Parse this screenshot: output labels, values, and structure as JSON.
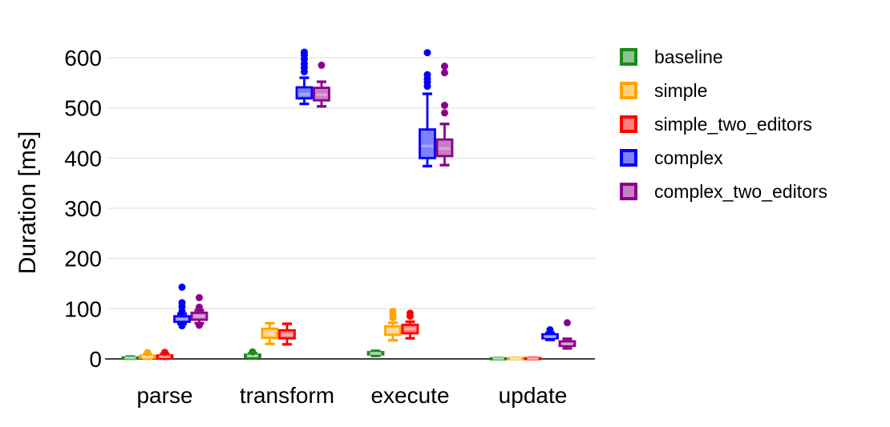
{
  "chart_data": {
    "type": "boxplot",
    "title": "",
    "xlabel": "",
    "ylabel": "Duration [ms]",
    "categories": [
      "parse",
      "transform",
      "execute",
      "update"
    ],
    "yticks": [
      0,
      100,
      200,
      300,
      400,
      500,
      600
    ],
    "ylim": [
      0,
      650
    ],
    "grid": true,
    "legend_position": "right",
    "series": [
      {
        "name": "baseline",
        "color": "#1a8a1a",
        "boxes": [
          {
            "category": "parse",
            "whisker_low": 0.5,
            "q1": 1,
            "median": 2,
            "q3": 3,
            "whisker_high": 4.5,
            "outliers": []
          },
          {
            "category": "transform",
            "whisker_low": 2,
            "q1": 4,
            "median": 6,
            "q3": 8.5,
            "whisker_high": 11,
            "outliers": [
              14
            ]
          },
          {
            "category": "execute",
            "whisker_low": 6,
            "q1": 9,
            "median": 11,
            "q3": 13.5,
            "whisker_high": 16,
            "outliers": []
          },
          {
            "category": "update",
            "whisker_low": 0,
            "q1": 0.3,
            "median": 0.7,
            "q3": 1.2,
            "whisker_high": 1.8,
            "outliers": []
          }
        ]
      },
      {
        "name": "simple",
        "color": "#ffa500",
        "boxes": [
          {
            "category": "parse",
            "whisker_low": 0.5,
            "q1": 2,
            "median": 4,
            "q3": 6.5,
            "whisker_high": 9,
            "outliers": [
              12.5
            ]
          },
          {
            "category": "transform",
            "whisker_low": 30,
            "q1": 42,
            "median": 50,
            "q3": 60,
            "whisker_high": 71,
            "outliers": []
          },
          {
            "category": "execute",
            "whisker_low": 37,
            "q1": 48,
            "median": 55,
            "q3": 65,
            "whisker_high": 72,
            "outliers": [
              82,
              88,
              95
            ]
          },
          {
            "category": "update",
            "whisker_low": 0,
            "q1": 0.5,
            "median": 1,
            "q3": 1.6,
            "whisker_high": 2.3,
            "outliers": []
          }
        ]
      },
      {
        "name": "simple_two_editors",
        "color": "#ff0000",
        "boxes": [
          {
            "category": "parse",
            "whisker_low": 0.5,
            "q1": 2,
            "median": 4.5,
            "q3": 7,
            "whisker_high": 10,
            "outliers": [
              13
            ]
          },
          {
            "category": "transform",
            "whisker_low": 29,
            "q1": 41,
            "median": 48,
            "q3": 57,
            "whisker_high": 70,
            "outliers": []
          },
          {
            "category": "execute",
            "whisker_low": 41,
            "q1": 51,
            "median": 60,
            "q3": 68,
            "whisker_high": 74,
            "outliers": [
              85,
              91
            ]
          },
          {
            "category": "update",
            "whisker_low": 0,
            "q1": 0.5,
            "median": 1,
            "q3": 1.6,
            "whisker_high": 2.3,
            "outliers": []
          }
        ]
      },
      {
        "name": "complex",
        "color": "#0000ff",
        "boxes": [
          {
            "category": "parse",
            "whisker_low": 70,
            "q1": 74,
            "median": 79,
            "q3": 85,
            "whisker_high": 90,
            "outliers": [
              66,
              95,
              104,
              112,
              143
            ]
          },
          {
            "category": "transform",
            "whisker_low": 508,
            "q1": 519,
            "median": 527,
            "q3": 541,
            "whisker_high": 560,
            "outliers": [
              572,
              580,
              588,
              597,
              605,
              611
            ]
          },
          {
            "category": "execute",
            "whisker_low": 384,
            "q1": 400,
            "median": 424,
            "q3": 457,
            "whisker_high": 528,
            "outliers": [
              543,
              551,
              558,
              566,
              610
            ]
          },
          {
            "category": "update",
            "whisker_low": 38,
            "q1": 41,
            "median": 44.5,
            "q3": 49,
            "whisker_high": 52,
            "outliers": [
              58
            ]
          }
        ]
      },
      {
        "name": "complex_two_editors",
        "color": "#8b008b",
        "boxes": [
          {
            "category": "parse",
            "whisker_low": 71,
            "q1": 78,
            "median": 85,
            "q3": 92,
            "whisker_high": 97,
            "outliers": [
              67,
              103,
              122
            ]
          },
          {
            "category": "transform",
            "whisker_low": 503,
            "q1": 515,
            "median": 526,
            "q3": 540,
            "whisker_high": 552,
            "outliers": [
              585
            ]
          },
          {
            "category": "execute",
            "whisker_low": 386,
            "q1": 404,
            "median": 419,
            "q3": 437,
            "whisker_high": 468,
            "outliers": [
              490,
              505,
              570,
              583
            ]
          },
          {
            "category": "update",
            "whisker_low": 21,
            "q1": 26,
            "median": 30,
            "q3": 35,
            "whisker_high": 40,
            "outliers": [
              72
            ]
          }
        ]
      }
    ]
  },
  "legend": {
    "entries": [
      {
        "label": "baseline",
        "color": "#1a8a1a"
      },
      {
        "label": "simple",
        "color": "#ffa500"
      },
      {
        "label": "simple_two_editors",
        "color": "#ff0000"
      },
      {
        "label": "complex",
        "color": "#0000ff"
      },
      {
        "label": "complex_two_editors",
        "color": "#8b008b"
      }
    ]
  },
  "colors": {
    "background": "#ffffff",
    "gridline": "#e9e9e9",
    "axis_line": "#404040",
    "text": "#000000"
  }
}
